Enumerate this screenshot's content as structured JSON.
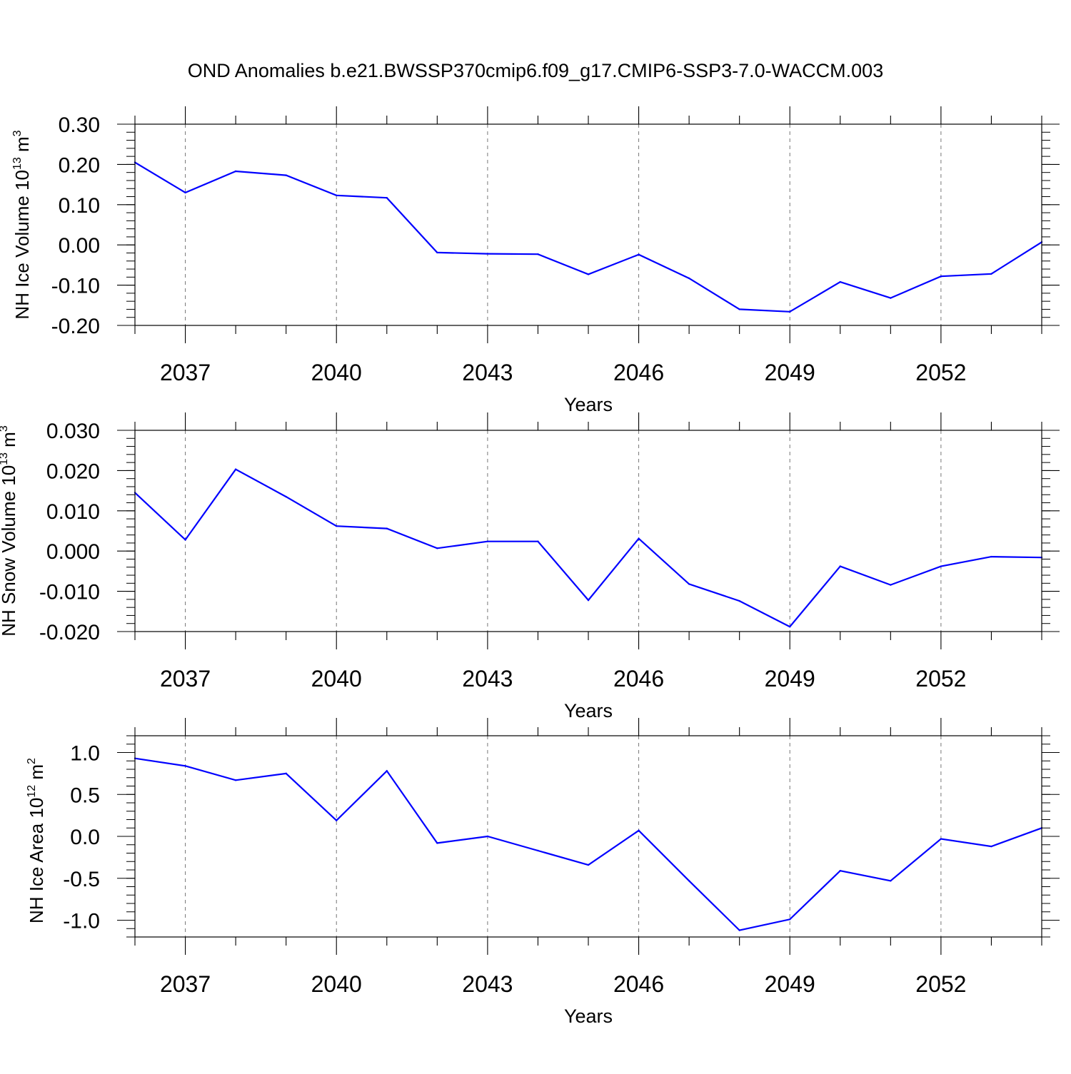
{
  "title": "OND Anomalies b.e21.BWSSP370cmip6.f09_g17.CMIP6-SSP3-7.0-WACCM.003",
  "colors": {
    "line": "#0000ff",
    "axis": "#000000",
    "grid": "#777777"
  },
  "chart_data": [
    {
      "type": "line",
      "xlabel": "Years",
      "ylabel": {
        "main": "NH Ice Volume 10",
        "sup": "13",
        "unit": " m",
        "unitsup": "3"
      },
      "x": [
        2036,
        2037,
        2038,
        2039,
        2040,
        2041,
        2042,
        2043,
        2044,
        2045,
        2046,
        2047,
        2048,
        2049,
        2050,
        2051,
        2052,
        2053,
        2054
      ],
      "values": [
        0.205,
        0.13,
        0.183,
        0.173,
        0.123,
        0.117,
        -0.019,
        -0.022,
        -0.023,
        -0.073,
        -0.024,
        -0.083,
        -0.16,
        -0.166,
        -0.092,
        -0.132,
        -0.078,
        -0.072,
        0.007
      ],
      "xlim": [
        2036,
        2054
      ],
      "ylim": [
        -0.2,
        0.3
      ],
      "yticks": [
        -0.2,
        -0.1,
        0.0,
        0.1,
        0.2,
        0.3
      ],
      "yticklabels": [
        "-0.20",
        "-0.10",
        "0.00",
        "0.10",
        "0.20",
        "0.30"
      ],
      "yminor": 0.02,
      "xticks": [
        2037,
        2040,
        2043,
        2046,
        2049,
        2052
      ],
      "xticklabels": [
        "2037",
        "2040",
        "2043",
        "2046",
        "2049",
        "2052"
      ],
      "grid": "vertical dashed at major x ticks"
    },
    {
      "type": "line",
      "xlabel": "Years",
      "ylabel": {
        "main": "NH Snow Volume 10",
        "sup": "13",
        "unit": " m",
        "unitsup": "3"
      },
      "x": [
        2036,
        2037,
        2038,
        2039,
        2040,
        2041,
        2042,
        2043,
        2044,
        2045,
        2046,
        2047,
        2048,
        2049,
        2050,
        2051,
        2052,
        2053,
        2054
      ],
      "values": [
        0.0145,
        0.0028,
        0.0203,
        0.0135,
        0.0062,
        0.0056,
        0.0007,
        0.0024,
        0.0024,
        -0.0122,
        0.0031,
        -0.0082,
        -0.0124,
        -0.0188,
        -0.0038,
        -0.0084,
        -0.0038,
        -0.0014,
        -0.0016
      ],
      "xlim": [
        2036,
        2054
      ],
      "ylim": [
        -0.02,
        0.03
      ],
      "yticks": [
        -0.02,
        -0.01,
        0.0,
        0.01,
        0.02,
        0.03
      ],
      "yticklabels": [
        "-0.020",
        "-0.010",
        "0.000",
        "0.010",
        "0.020",
        "0.030"
      ],
      "yminor": 0.002,
      "xticks": [
        2037,
        2040,
        2043,
        2046,
        2049,
        2052
      ],
      "xticklabels": [
        "2037",
        "2040",
        "2043",
        "2046",
        "2049",
        "2052"
      ],
      "grid": "vertical dashed at major x ticks"
    },
    {
      "type": "line",
      "xlabel": "Years",
      "ylabel": {
        "main": "NH Ice Area 10",
        "sup": "12",
        "unit": " m",
        "unitsup": "2"
      },
      "x": [
        2036,
        2037,
        2038,
        2039,
        2040,
        2041,
        2042,
        2043,
        2044,
        2045,
        2046,
        2047,
        2048,
        2049,
        2050,
        2051,
        2052,
        2053,
        2054
      ],
      "values": [
        0.93,
        0.84,
        0.67,
        0.75,
        0.19,
        0.78,
        -0.08,
        0.0,
        -0.17,
        -0.34,
        0.07,
        -0.53,
        -1.12,
        -0.99,
        -0.41,
        -0.53,
        -0.03,
        -0.12,
        0.1
      ],
      "xlim": [
        2036,
        2054
      ],
      "ylim": [
        -1.2,
        1.2
      ],
      "yticks": [
        -1.0,
        -0.5,
        0.0,
        0.5,
        1.0
      ],
      "yticklabels": [
        "-1.0",
        "-0.5",
        "0.0",
        "0.5",
        "1.0"
      ],
      "yminor": 0.1,
      "xticks": [
        2037,
        2040,
        2043,
        2046,
        2049,
        2052
      ],
      "xticklabels": [
        "2037",
        "2040",
        "2043",
        "2046",
        "2049",
        "2052"
      ],
      "grid": "vertical dashed at major x ticks"
    }
  ]
}
